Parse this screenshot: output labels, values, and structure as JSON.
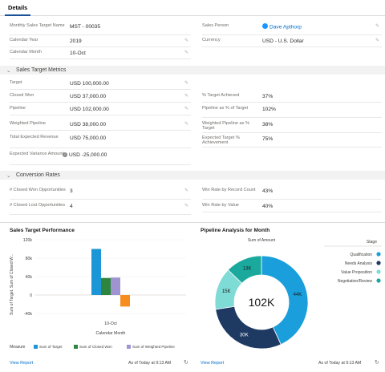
{
  "tabs": {
    "details": "Details"
  },
  "top_fields": [
    {
      "label": "Monthly Sales Target Name",
      "value": "MST - 00035"
    },
    {
      "label": "Calendar Year",
      "value": "2019"
    },
    {
      "label": "Calendar Month",
      "value": "10-Oct"
    },
    {
      "label": "Sales Person",
      "value": "Dave Apthorp"
    },
    {
      "label": "Currency",
      "value": "USD - U.S. Dollar"
    }
  ],
  "sections": {
    "sales_target_metrics": "Sales Target Metrics",
    "conversion_rates": "Conversion Rates"
  },
  "metrics_left": [
    {
      "label": "Target",
      "value": "USD 100,000.00"
    },
    {
      "label": "Closed Won",
      "value": "USD 37,000.00"
    },
    {
      "label": "Pipeline",
      "value": "USD 102,000.00"
    },
    {
      "label": "Weighted Pipeline",
      "value": "USD 38,000.00"
    },
    {
      "label": "Total Expected Revenue",
      "value": "USD 75,000.00"
    },
    {
      "label": "Expected Variance Amount",
      "value": "USD -25,000.00"
    }
  ],
  "metrics_right": [
    {
      "label": "% Target Achieved",
      "value": "37%"
    },
    {
      "label": "Pipeline as % of Target",
      "value": "102%"
    },
    {
      "label": "Weighted Pipeline as % Target",
      "value": "38%"
    },
    {
      "label": "Expected Target % Achievement",
      "value": "75%"
    }
  ],
  "conversion_left": [
    {
      "label": "# Closed Won Opportunities",
      "value": "3"
    },
    {
      "label": "# Closed Lost Opportunities",
      "value": "4"
    }
  ],
  "conversion_right": [
    {
      "label": "Win Rate by Record Count",
      "value": "43%"
    },
    {
      "label": "Win Rate by Value",
      "value": "40%"
    }
  ],
  "cards": {
    "sales_title": "Sales Target Performance",
    "pipeline_title": "Pipeline Analysis for Month",
    "view_report": "View Report",
    "timestamp": "As of Today at 9:13 AM",
    "stage_label": "Stage",
    "sum_amount_label": "Sum of Amount",
    "measure_label": "Measure"
  },
  "colors": {
    "target": "#1b96d6",
    "closed_won": "#2e8540",
    "weighted": "#a094d0",
    "variance": "#f78c1f",
    "qualification": "#1a9fdc",
    "needs_analysis": "#1e3a63",
    "value_proposition": "#7edbd6",
    "negotiation": "#1aa99c",
    "accent": "#1b5297"
  },
  "chart_data": [
    {
      "type": "bar",
      "title": "Sales Target Performance",
      "xlabel": "Calendar Month",
      "ylabel": "Sum of Target, Sum of Closed W...",
      "categories": [
        "10-Oct"
      ],
      "ylim": [
        -40,
        120
      ],
      "yticks": [
        "120k",
        "80k",
        "40k",
        "0",
        "-40k"
      ],
      "series": [
        {
          "name": "Sum of Target",
          "values": [
            100
          ]
        },
        {
          "name": "Sum of Closed Won",
          "values": [
            37
          ]
        },
        {
          "name": "Sum of Weighted Pipeline",
          "values": [
            38
          ]
        },
        {
          "name": "",
          "values": [
            -25
          ]
        }
      ]
    },
    {
      "type": "pie",
      "title": "Pipeline Analysis for Month",
      "center_label": "102K",
      "slices": [
        {
          "name": "Qualification",
          "value": 44,
          "label": "44K"
        },
        {
          "name": "Needs Analysis",
          "value": 30,
          "label": "30K"
        },
        {
          "name": "Value Proposition",
          "value": 15,
          "label": "15K"
        },
        {
          "name": "Negotiation/Review",
          "value": 13,
          "label": "13K"
        }
      ]
    }
  ]
}
